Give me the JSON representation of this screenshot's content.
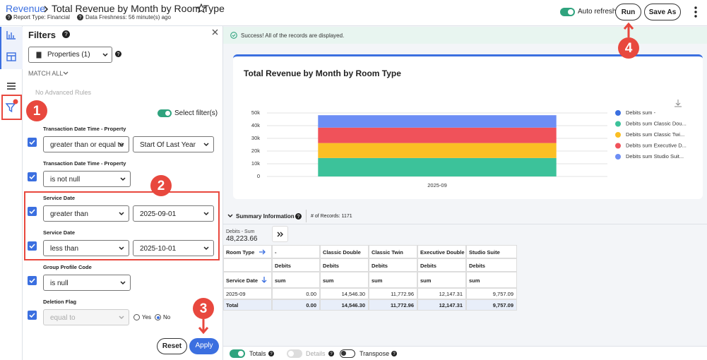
{
  "header": {
    "breadcrumb": "Revenue",
    "title": "Total Revenue by Month by Room Type",
    "report_type": "Report Type: Financial",
    "data_freshness": "Data Freshness: 56 minute(s) ago",
    "auto_refresh": "Auto refresh",
    "run": "Run",
    "save_as": "Save As"
  },
  "filters": {
    "title": "Filters",
    "properties": "Properties (1)",
    "match": "MATCH ALL",
    "no_rules": "No Advanced Rules",
    "select_filters": "Select filter(s)",
    "rules": [
      {
        "label": "Transaction Date Time - Property",
        "operator": "greater than or equal to",
        "value": "Start Of Last Year"
      },
      {
        "label": "Transaction Date Time - Property",
        "operator": "is not null"
      },
      {
        "label": "Service Date",
        "operator": "greater than",
        "value": "2025-09-01"
      },
      {
        "label": "Service Date",
        "operator": "less than",
        "value": "2025-10-01"
      },
      {
        "label": "Group Profile Code",
        "operator": "is null"
      },
      {
        "label": "Deletion Flag",
        "operator": "equal to",
        "options": [
          "Yes",
          "No"
        ]
      }
    ],
    "reset": "Reset",
    "apply": "Apply"
  },
  "annotations": [
    "1",
    "2",
    "3",
    "4"
  ],
  "success": "Success! All of the records are displayed.",
  "chart_data": {
    "type": "bar",
    "stacked": true,
    "title": "Total Revenue by Month by Room Type",
    "categories": [
      "2025-09"
    ],
    "series": [
      {
        "name": "Debits sum -",
        "color": "#3b6fe0",
        "values": [
          0
        ]
      },
      {
        "name": "Debits sum Classic Dou...",
        "color": "#3cc29a",
        "values": [
          14546.3
        ]
      },
      {
        "name": "Debits sum Classic Twi...",
        "color": "#fbbf24",
        "values": [
          11772.96
        ]
      },
      {
        "name": "Debits sum Executive D...",
        "color": "#f0525a",
        "values": [
          12147.31
        ]
      },
      {
        "name": "Debits sum Studio Suit...",
        "color": "#6d8ef5",
        "values": [
          9757.09
        ]
      }
    ],
    "ylim": [
      0,
      50000
    ],
    "yticks": [
      0,
      {
        "value": 10000,
        "label": "10k"
      },
      {
        "value": 20000,
        "label": "20k"
      },
      {
        "value": 30000,
        "label": "30k"
      },
      {
        "value": 40000,
        "label": "40k"
      },
      {
        "value": 50000,
        "label": "50k"
      }
    ],
    "grid": true,
    "legend": "right"
  },
  "summary": {
    "title": "Summary Information",
    "records": "# of Records: 1171",
    "metric": "Debits - Sum",
    "total": "48,223.66"
  },
  "table": {
    "column_header_label": "Room Type",
    "columns": [
      "-",
      "Classic Double",
      "Classic Twin",
      "Executive Double",
      "Studio Suite"
    ],
    "measure_row": [
      "Debits",
      "Debits",
      "Debits",
      "Debits",
      "Debits"
    ],
    "row_header_label": "Service Date",
    "aggregate_row": [
      "sum",
      "sum",
      "sum",
      "sum",
      "sum"
    ],
    "rows": [
      {
        "label": "2025-09",
        "cells": [
          "0.00",
          "14,546.30",
          "11,772.96",
          "12,147.31",
          "9,757.09"
        ]
      },
      {
        "label": "Total",
        "cells": [
          "0.00",
          "14,546.30",
          "11,772.96",
          "12,147.31",
          "9,757.09"
        ]
      }
    ]
  },
  "footer": {
    "totals": "Totals",
    "details": "Details",
    "transpose": "Transpose"
  }
}
